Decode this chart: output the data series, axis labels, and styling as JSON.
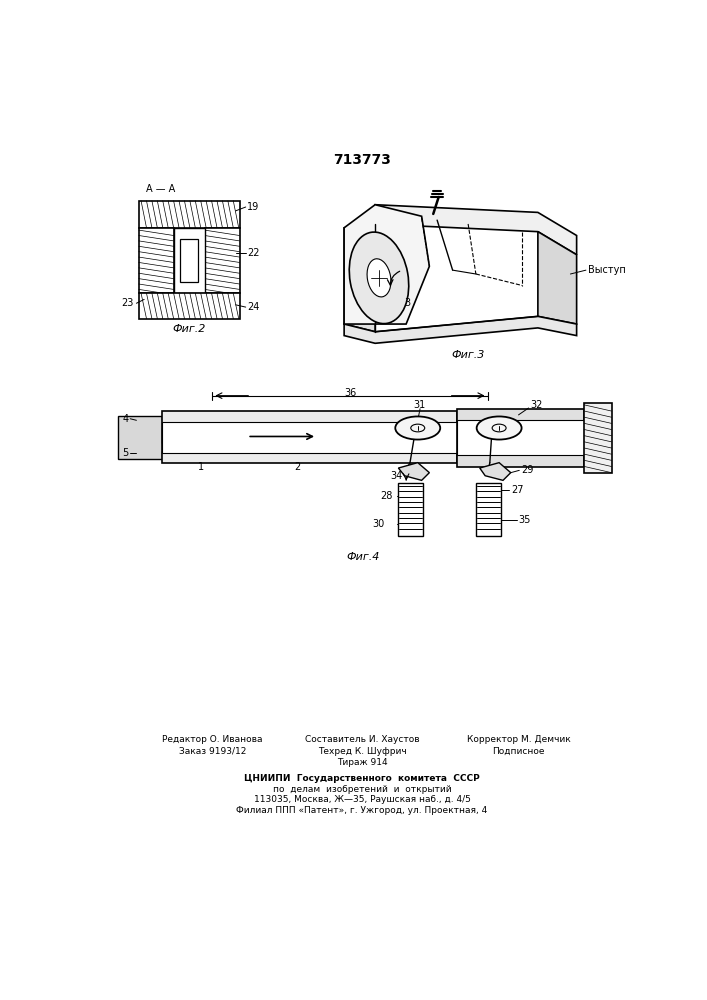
{
  "patent_number": "713773",
  "background_color": "#ffffff",
  "line_color": "#000000",
  "fig_width": 7.07,
  "fig_height": 10.0,
  "fig2_label": "Фиг.2",
  "fig3_label": "Фиг.3",
  "fig4_label": "Фиг.4"
}
